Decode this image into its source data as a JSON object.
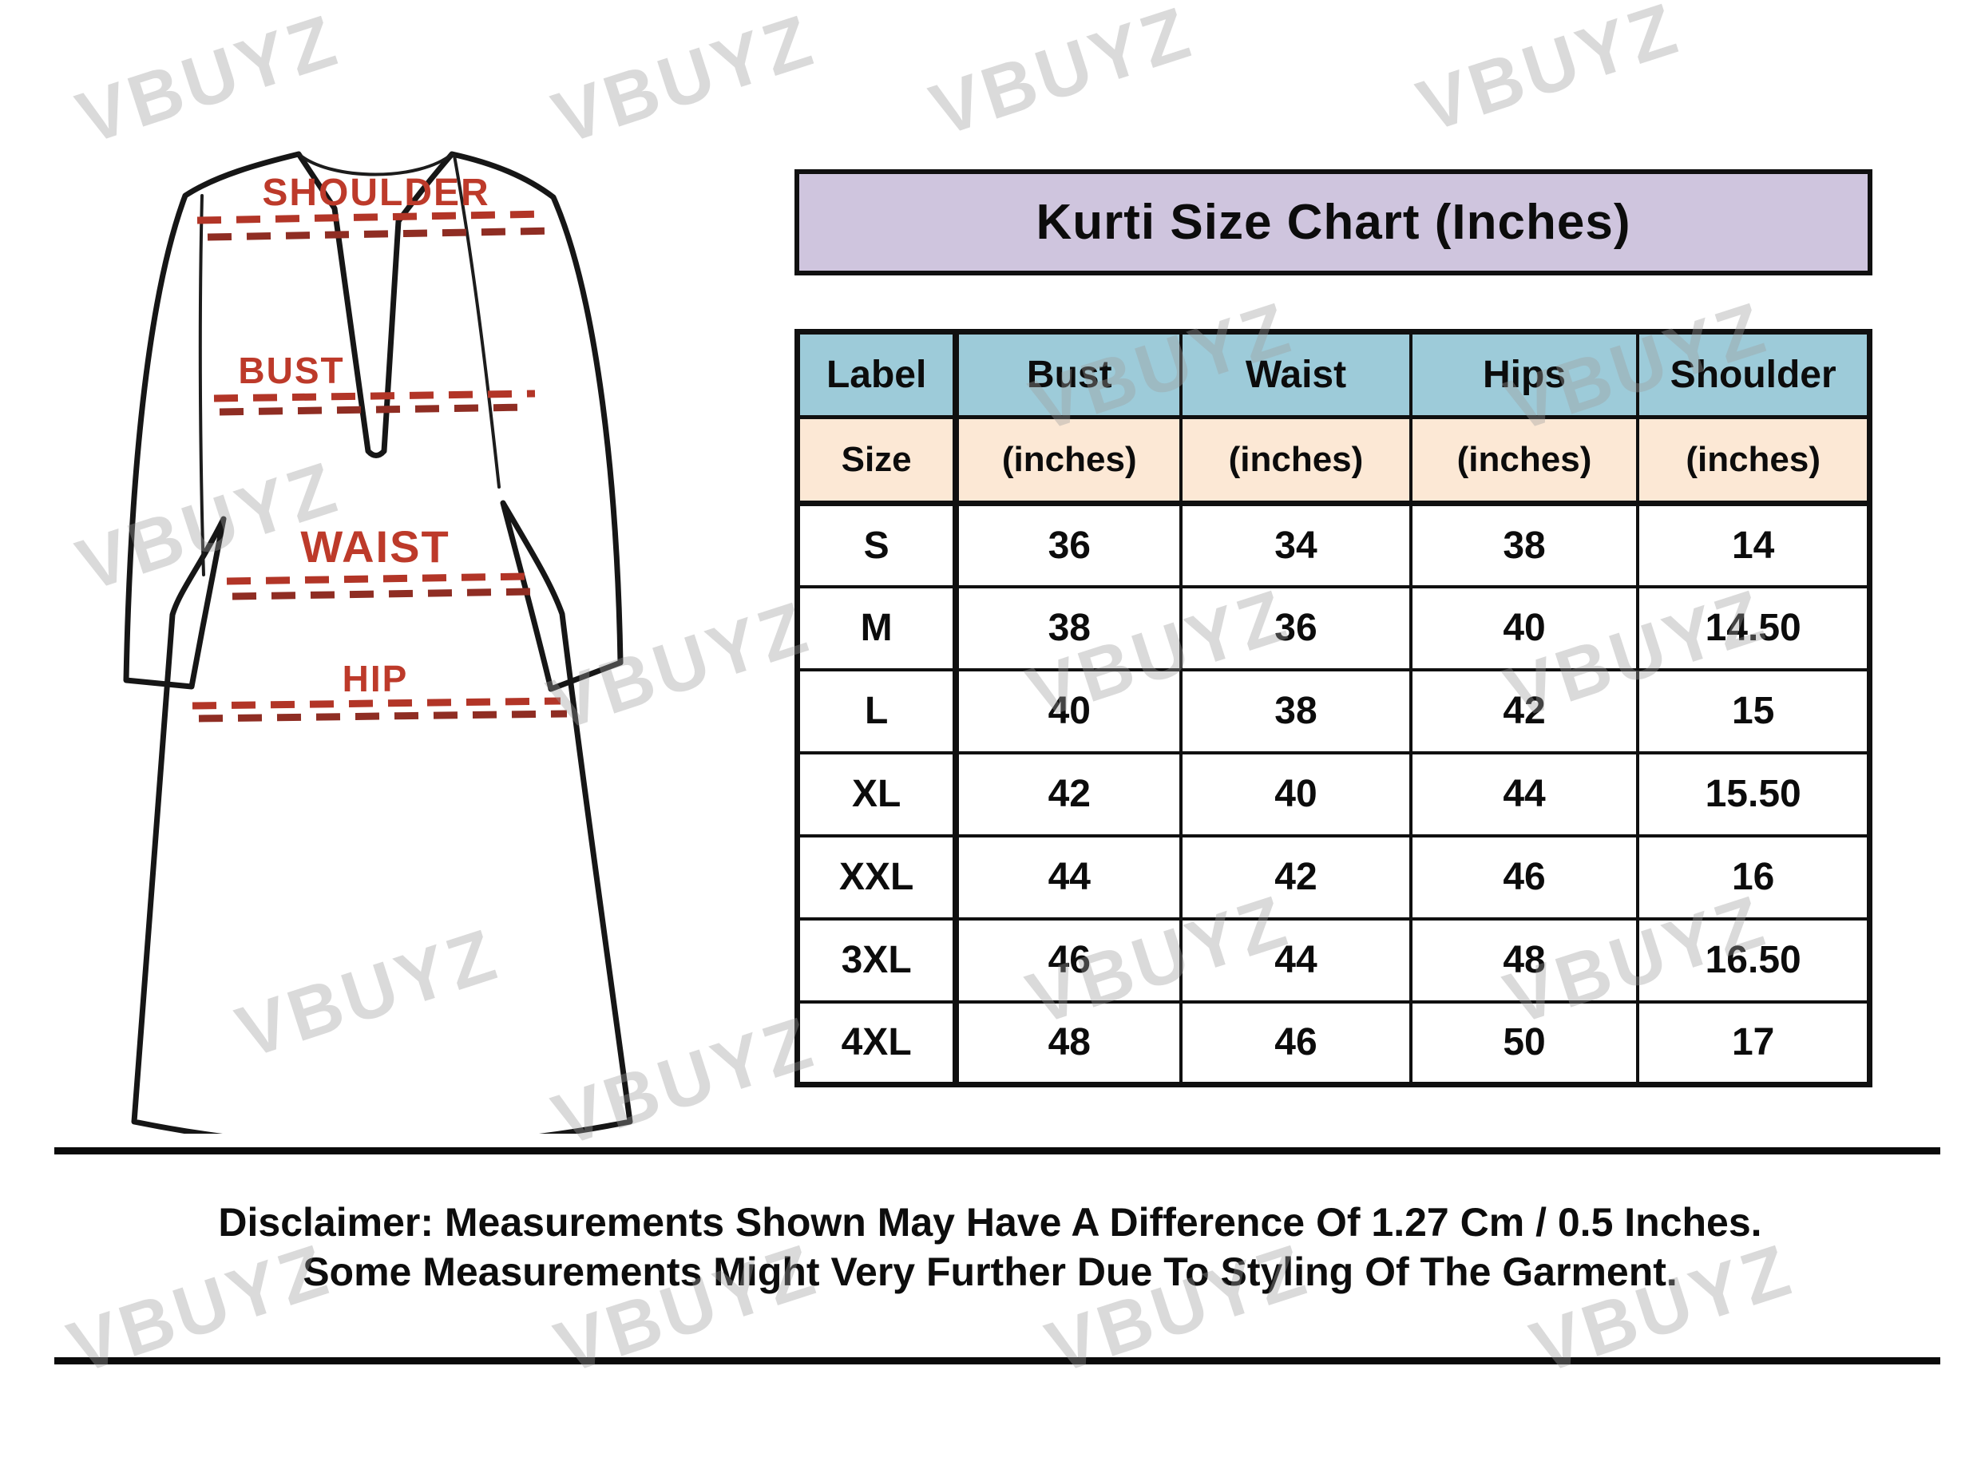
{
  "watermark": {
    "text": "VBUYZ"
  },
  "title": "Kurti Size Chart (Inches)",
  "diagram": {
    "shoulder_label": "SHOULDER",
    "bust_label": "BUST",
    "waist_label": "WAIST",
    "hip_label": "HIP"
  },
  "table": {
    "columns": [
      {
        "header": "Label",
        "sub": "Size"
      },
      {
        "header": "Bust",
        "sub": "(inches)"
      },
      {
        "header": "Waist",
        "sub": "(inches)"
      },
      {
        "header": "Hips",
        "sub": "(inches)"
      },
      {
        "header": "Shoulder",
        "sub": "(inches)"
      }
    ],
    "rows": [
      {
        "size": "S",
        "bust": "36",
        "waist": "34",
        "hips": "38",
        "shoulder": "14"
      },
      {
        "size": "M",
        "bust": "38",
        "waist": "36",
        "hips": "40",
        "shoulder": "14.50"
      },
      {
        "size": "L",
        "bust": "40",
        "waist": "38",
        "hips": "42",
        "shoulder": "15"
      },
      {
        "size": "XL",
        "bust": "42",
        "waist": "40",
        "hips": "44",
        "shoulder": "15.50"
      },
      {
        "size": "XXL",
        "bust": "44",
        "waist": "42",
        "hips": "46",
        "shoulder": "16"
      },
      {
        "size": "3XL",
        "bust": "46",
        "waist": "44",
        "hips": "48",
        "shoulder": "16.50"
      },
      {
        "size": "4XL",
        "bust": "48",
        "waist": "46",
        "hips": "50",
        "shoulder": "17"
      }
    ]
  },
  "disclaimer": {
    "line1": "Disclaimer: Measurements Shown May Have A Difference Of 1.27 Cm / 0.5 Inches.",
    "line2": "Some Measurements Might Very Further Due To Styling Of The Garment."
  },
  "colors": {
    "banner_bg": "#cfc5de",
    "header_bg": "#9dcbd9",
    "subheader_bg": "#fce8d5",
    "label_red": "#bd3a2a",
    "dash_red_a": "#b23527",
    "dash_red_b": "#8f2d23"
  },
  "chart_data": {
    "type": "table",
    "title": "Kurti Size Chart (Inches)",
    "columns": [
      "Label / Size",
      "Bust (inches)",
      "Waist (inches)",
      "Hips (inches)",
      "Shoulder (inches)"
    ],
    "rows": [
      [
        "S",
        36,
        34,
        38,
        14
      ],
      [
        "M",
        38,
        36,
        40,
        14.5
      ],
      [
        "L",
        40,
        38,
        42,
        15
      ],
      [
        "XL",
        42,
        40,
        44,
        15.5
      ],
      [
        "XXL",
        44,
        42,
        46,
        16
      ],
      [
        "3XL",
        46,
        44,
        48,
        16.5
      ],
      [
        "4XL",
        48,
        46,
        50,
        17
      ]
    ],
    "notes": "Measurement diagram marks SHOULDER, BUST, WAIST, HIP lines on a kurti sketch"
  }
}
